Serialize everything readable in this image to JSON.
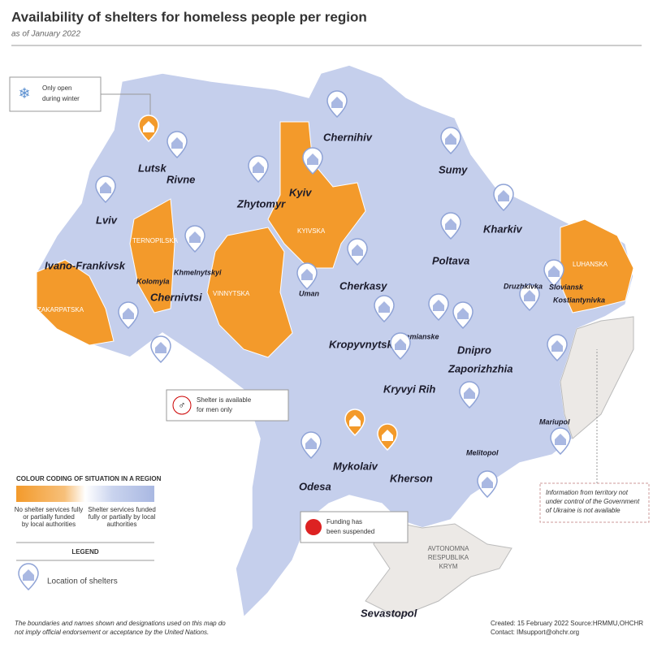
{
  "header": {
    "title": "Availability of shelters for homeless people per region",
    "subtitle": "as of January 2022"
  },
  "callouts": {
    "winter": [
      "Only open",
      "during winter"
    ],
    "men": [
      "Shelter is available",
      "for men only"
    ],
    "funding": [
      "Funding has",
      "been suspended"
    ],
    "territory": [
      "Information from territory not",
      "under control of the Government",
      "of Ukraine is not available"
    ]
  },
  "legend": {
    "heading": "COLOUR CODING OF SITUATION IN A REGION",
    "low": [
      "No shelter services fully",
      "or partially funded",
      "by local authorities"
    ],
    "high": [
      "Shelter services funded",
      "fully or partially by local",
      "authorities"
    ],
    "title": "LEGEND",
    "pin": "Location of shelters"
  },
  "regions": [
    {
      "label": [
        "ZAKARPATSKA"
      ]
    },
    {
      "label": [
        "TERNOPILSKA"
      ]
    },
    {
      "label": [
        "VINNYTSKA"
      ]
    },
    {
      "label": [
        "KYIVSKA"
      ]
    },
    {
      "label": [
        "LUHANSKA"
      ]
    },
    {
      "label": [
        "AVTONOMNA",
        "RESPUBLIKA",
        "KRYM"
      ]
    }
  ],
  "cities": [
    {
      "label": "Lutsk"
    },
    {
      "label": "Rivne"
    },
    {
      "label": "Lviv"
    },
    {
      "label": "Ivano-Frankivsk"
    },
    {
      "label": "Kolomyia"
    },
    {
      "label": "Chernivtsi"
    },
    {
      "label": "Khmelnytskyi"
    },
    {
      "label": "Zhytomyr"
    },
    {
      "label": "Kyiv"
    },
    {
      "label": "Chernihiv"
    },
    {
      "label": "Sumy"
    },
    {
      "label": "Kharkiv"
    },
    {
      "label": "Poltava"
    },
    {
      "label": "Cherkasy"
    },
    {
      "label": "Uman"
    },
    {
      "label": "Kropyvnytskyi"
    },
    {
      "label": "Kamianske"
    },
    {
      "label": "Dnipro"
    },
    {
      "label": "Zaporizhzhia"
    },
    {
      "label": "Kryvyi Rih"
    },
    {
      "label": "Druzhkivka"
    },
    {
      "label": "Sloviansk"
    },
    {
      "label": "Kostiantynivka"
    },
    {
      "label": "Mariupol"
    },
    {
      "label": "Melitopol"
    },
    {
      "label": "Mykolaiv"
    },
    {
      "label": "Kherson"
    },
    {
      "label": "Odesa"
    },
    {
      "label": "Sevastopol"
    }
  ],
  "disclaimer": [
    "The boundaries and names shown and designations used on this map do",
    "not imply official endorsement or acceptance by the United Nations."
  ],
  "credits": [
    "Created: 15 February 2022  Source:HRMMU,OHCHR",
    "Contact: IMsupport@ohchr.org"
  ]
}
